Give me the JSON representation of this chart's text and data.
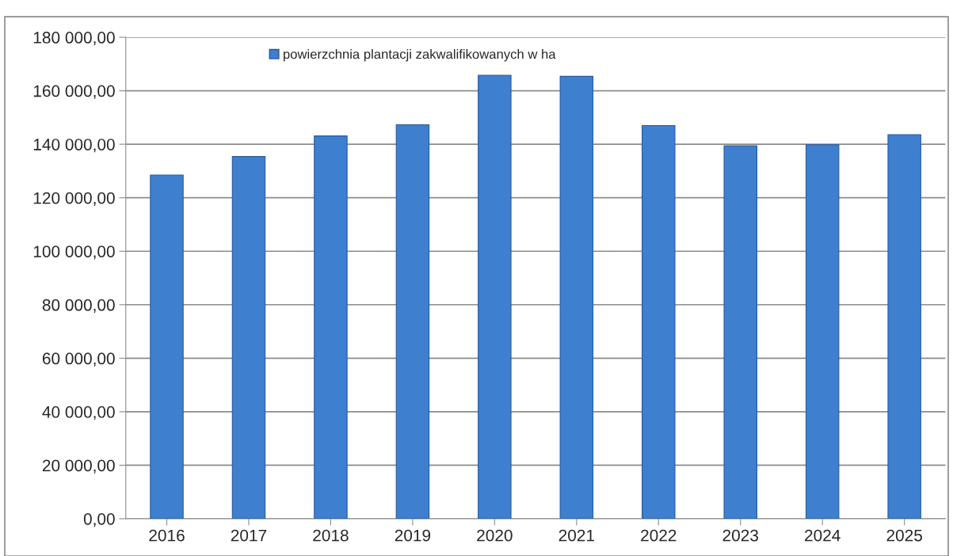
{
  "chart_data": {
    "type": "bar",
    "categories": [
      "2016",
      "2017",
      "2018",
      "2019",
      "2020",
      "2021",
      "2022",
      "2023",
      "2024",
      "2025"
    ],
    "series": [
      {
        "name": "powierzchnia plantacji zakwalifikowanych w ha",
        "color": "#3e7fd0",
        "values": [
          128500,
          135400,
          143100,
          147300,
          165800,
          165400,
          147000,
          139400,
          139800,
          143600
        ]
      }
    ],
    "ylim": [
      0,
      180000
    ],
    "yticks": [
      {
        "value": 0,
        "label": "0,00"
      },
      {
        "value": 20000,
        "label": "20 000,00"
      },
      {
        "value": 40000,
        "label": "40 000,00"
      },
      {
        "value": 60000,
        "label": "60 000,00"
      },
      {
        "value": 80000,
        "label": "80 000,00"
      },
      {
        "value": 100000,
        "label": "100 000,00"
      },
      {
        "value": 120000,
        "label": "120 000,00"
      },
      {
        "value": 140000,
        "label": "140 000,00"
      },
      {
        "value": 160000,
        "label": "160 000,00"
      },
      {
        "value": 180000,
        "label": "180 000,00"
      }
    ],
    "grid": "y",
    "legend": "top"
  }
}
